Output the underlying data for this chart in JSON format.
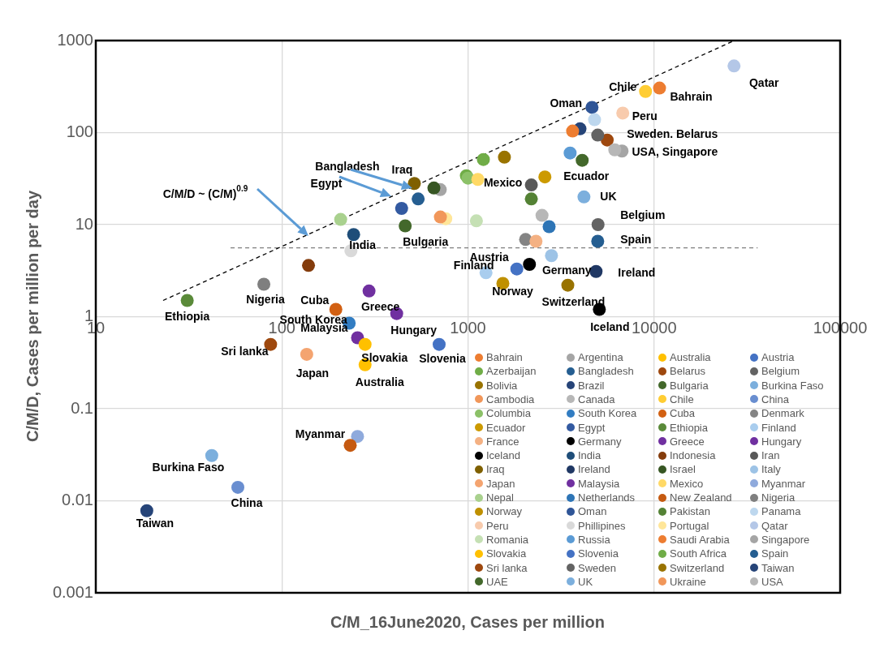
{
  "chart_data": {
    "type": "scatter",
    "xlabel": "C/M_16June2020, Cases per million",
    "ylabel": "C/M/D, Cases per million per day",
    "log": "xy",
    "grid": true,
    "legend": "bottom right",
    "marker": "circle",
    "xlim": [
      10,
      100000
    ],
    "xticks": [
      10,
      100,
      1000,
      10000,
      100000
    ],
    "ylim": [
      0.001,
      1000
    ],
    "yticks": [
      0.001,
      0.01,
      0.1,
      1,
      10,
      100,
      1000
    ],
    "series": [
      {
        "name": "Bahrain",
        "color": "#ed7d31",
        "x": [
          10700
        ],
        "values": [
          305
        ]
      },
      {
        "name": "Argentina",
        "color": "#a5a5a5",
        "x": [
          710
        ],
        "values": [
          24
        ]
      },
      {
        "name": "Australia",
        "color": "#ffc000",
        "x": [
          280
        ],
        "values": [
          0.3
        ]
      },
      {
        "name": "Austria",
        "color": "#4472c4",
        "x": [
          1830
        ],
        "values": [
          3.3
        ]
      },
      {
        "name": "Azerbaijan",
        "color": "#70ad47",
        "x": [
          980
        ],
        "values": [
          34
        ]
      },
      {
        "name": "Bangladesh",
        "color": "#255e91",
        "x": [
          540
        ],
        "values": [
          19
        ]
      },
      {
        "name": "Belarus",
        "color": "#9e480e",
        "x": [
          5600
        ],
        "values": [
          83
        ]
      },
      {
        "name": "Belgium",
        "color": "#636363",
        "x": [
          5000
        ],
        "values": [
          10
        ]
      },
      {
        "name": "Bolivia",
        "color": "#997300",
        "x": [
          1570
        ],
        "values": [
          54
        ]
      },
      {
        "name": "Brazil",
        "color": "#264478",
        "x": [
          4000
        ],
        "values": [
          110
        ]
      },
      {
        "name": "Bulgaria",
        "color": "#43682b",
        "x": [
          460
        ],
        "values": [
          9.7
        ]
      },
      {
        "name": "Burkina Faso",
        "color": "#7cafdd",
        "x": [
          42
        ],
        "values": [
          0.031
        ]
      },
      {
        "name": "Cambodia",
        "color": "#f1975a",
        "x": [
          null
        ],
        "values": [
          null
        ]
      },
      {
        "name": "Canada",
        "color": "#b7b7b7",
        "x": [
          2500
        ],
        "values": [
          12.6
        ]
      },
      {
        "name": "Chile",
        "color": "#ffcd33",
        "x": [
          9000
        ],
        "values": [
          280
        ]
      },
      {
        "name": "China",
        "color": "#698ed0",
        "x": [
          58
        ],
        "values": [
          0.014
        ]
      },
      {
        "name": "Columbia",
        "color": "#8cc168",
        "x": [
          1000
        ],
        "values": [
          32
        ]
      },
      {
        "name": "South Korea",
        "color": "#327dc2",
        "x": [
          230
        ],
        "values": [
          0.85
        ]
      },
      {
        "name": "Cuba",
        "color": "#d26012",
        "x": [
          195
        ],
        "values": [
          1.2
        ]
      },
      {
        "name": "Denmark",
        "color": "#848484",
        "x": [
          2040
        ],
        "values": [
          6.9
        ]
      },
      {
        "name": "Ecuador",
        "color": "#cc9a00",
        "x": [
          2590
        ],
        "values": [
          33
        ]
      },
      {
        "name": "Egypt",
        "color": "#335aa1",
        "x": [
          440
        ],
        "values": [
          15
        ]
      },
      {
        "name": "Ethiopia",
        "color": "#5a8a39",
        "x": [
          31
        ],
        "values": [
          1.5
        ]
      },
      {
        "name": "Finland",
        "color": "#a9cdee",
        "x": [
          1250
        ],
        "values": [
          3
        ]
      },
      {
        "name": "France",
        "color": "#f4b183",
        "x": [
          2320
        ],
        "values": [
          6.6
        ]
      },
      {
        "name": "Germany",
        "color": "#000000",
        "x": [
          2140
        ],
        "values": [
          3.7
        ]
      },
      {
        "name": "Greece",
        "color": "#7030a0",
        "x": [
          294
        ],
        "values": [
          1.9
        ]
      },
      {
        "name": "Hungary",
        "color": "#7030a0",
        "x": [
          414
        ],
        "values": [
          1.08
        ]
      },
      {
        "name": "Iceland",
        "color": "#000000",
        "x": [
          5080
        ],
        "values": [
          1.2
        ]
      },
      {
        "name": "India",
        "color": "#1f4e79",
        "x": [
          243
        ],
        "values": [
          7.8
        ]
      },
      {
        "name": "Indonesia",
        "color": "#843c0c",
        "x": [
          139
        ],
        "values": [
          3.6
        ]
      },
      {
        "name": "Iran",
        "color": "#595959",
        "x": [
          2190
        ],
        "values": [
          27
        ]
      },
      {
        "name": "Iraq",
        "color": "#7f6000",
        "x": [
          515
        ],
        "values": [
          28
        ]
      },
      {
        "name": "Ireland",
        "color": "#203864",
        "x": [
          4880
        ],
        "values": [
          3.1
        ]
      },
      {
        "name": "Israel",
        "color": "#375623",
        "x": [
          656
        ],
        "values": [
          25
        ]
      },
      {
        "name": "Italy",
        "color": "#9dc3e6",
        "x": [
          2810
        ],
        "values": [
          4.6
        ]
      },
      {
        "name": "Japan",
        "color": "#f4a470",
        "x": [
          136
        ],
        "values": [
          0.39
        ]
      },
      {
        "name": "Malaysia",
        "color": "#7030a0",
        "x": [
          255
        ],
        "values": [
          0.59
        ]
      },
      {
        "name": "Mexico",
        "color": "#ffd966",
        "x": [
          1130
        ],
        "values": [
          31
        ]
      },
      {
        "name": "Myanmar",
        "color": "#8faadc",
        "x": [
          255
        ],
        "values": [
          0.05
        ]
      },
      {
        "name": "Nepal",
        "color": "#a9d18e",
        "x": [
          207
        ],
        "values": [
          11.4
        ]
      },
      {
        "name": "Netherlands",
        "color": "#2e75b6",
        "x": [
          2730
        ],
        "values": [
          9.5
        ]
      },
      {
        "name": "New Zealand",
        "color": "#c55a11",
        "x": [
          233
        ],
        "values": [
          0.04
        ]
      },
      {
        "name": "Nigeria",
        "color": "#7f7f7f",
        "x": [
          80
        ],
        "values": [
          2.25
        ]
      },
      {
        "name": "Norway",
        "color": "#bf9000",
        "x": [
          1540
        ],
        "values": [
          2.3
        ]
      },
      {
        "name": "Oman",
        "color": "#2f5597",
        "x": [
          4640
        ],
        "values": [
          188
        ]
      },
      {
        "name": "Pakistan",
        "color": "#548235",
        "x": [
          2190
        ],
        "values": [
          19
        ]
      },
      {
        "name": "Panama",
        "color": "#bdd7ee",
        "x": [
          4790
        ],
        "values": [
          138
        ]
      },
      {
        "name": "Peru",
        "color": "#f8cbad",
        "x": [
          6790
        ],
        "values": [
          163
        ]
      },
      {
        "name": "Phillipines",
        "color": "#d9d9d9",
        "x": [
          235
        ],
        "values": [
          5.2
        ]
      },
      {
        "name": "Portugal",
        "color": "#ffe699",
        "x": [
          760
        ],
        "values": [
          11.6
        ]
      },
      {
        "name": "Qatar",
        "color": "#b4c7e7",
        "x": [
          26900
        ],
        "values": [
          530
        ]
      },
      {
        "name": "Romania",
        "color": "#c5e0b4",
        "x": [
          1110
        ],
        "values": [
          11
        ]
      },
      {
        "name": "Russia",
        "color": "#5b9bd5",
        "x": [
          3540
        ],
        "values": [
          60
        ]
      },
      {
        "name": "Saudi Arabia",
        "color": "#ed7d31",
        "x": [
          3650
        ],
        "values": [
          104
        ]
      },
      {
        "name": "Singapore",
        "color": "#a5a5a5",
        "x": [
          6730
        ],
        "values": [
          63
        ]
      },
      {
        "name": "Slovakia",
        "color": "#ffc000",
        "x": [
          280
        ],
        "values": [
          0.5
        ]
      },
      {
        "name": "Slovenia",
        "color": "#4472c4",
        "x": [
          700
        ],
        "values": [
          0.5
        ]
      },
      {
        "name": "South Africa",
        "color": "#70ad47",
        "x": [
          1210
        ],
        "values": [
          51
        ]
      },
      {
        "name": "Spain",
        "color": "#255e91",
        "x": [
          4980
        ],
        "values": [
          6.6
        ]
      },
      {
        "name": "Sri lanka",
        "color": "#9e480e",
        "x": [
          87
        ],
        "values": [
          0.5
        ]
      },
      {
        "name": "Sweden",
        "color": "#636363",
        "x": [
          4980
        ],
        "values": [
          94
        ]
      },
      {
        "name": "Switzerland",
        "color": "#997300",
        "x": [
          3440
        ],
        "values": [
          2.2
        ]
      },
      {
        "name": "Taiwan",
        "color": "#264478",
        "x": [
          18.8
        ],
        "values": [
          0.0078
        ]
      },
      {
        "name": "UAE",
        "color": "#43682b",
        "x": [
          4110
        ],
        "values": [
          50
        ]
      },
      {
        "name": "UK",
        "color": "#7cafdd",
        "x": [
          4200
        ],
        "values": [
          20
        ]
      },
      {
        "name": "Ukraine",
        "color": "#f1975a",
        "x": [
          711
        ],
        "values": [
          12.1
        ]
      },
      {
        "name": "USA",
        "color": "#b7b7b7",
        "x": [
          6150
        ],
        "values": [
          65
        ]
      },
      {
        "type": "line",
        "color": "#000000",
        "line_style": "dashed",
        "marker": "none",
        "x": [
          23,
          27000
        ],
        "values": [
          1.5,
          1000
        ]
      },
      {
        "type": "line",
        "color": "#7f7f7f",
        "line_style": "dashed",
        "marker": "none",
        "x": [
          53,
          36000
        ],
        "values": [
          5.6,
          5.6
        ]
      }
    ],
    "annotations": [
      {
        "text": "Qatar",
        "x": 26900,
        "y": 530
      },
      {
        "text": "Chile",
        "x": 9000,
        "y": 280
      },
      {
        "text": "Bahrain",
        "x": 10700,
        "y": 305
      },
      {
        "text": "Oman",
        "x": 4640,
        "y": 188
      },
      {
        "text": "Peru",
        "x": 6790,
        "y": 163
      },
      {
        "text": "Sweden. Belarus",
        "x": 4980,
        "y": 94
      },
      {
        "text": "USA, Singapore",
        "x": 6150,
        "y": 65
      },
      {
        "text": "Iraq",
        "x": 515,
        "y": 28
      },
      "Bangladesh",
      "Egypt",
      {
        "text": "Mexico",
        "x": 1130,
        "y": 31
      },
      {
        "text": "Ecuador",
        "x": 2590,
        "y": 33
      },
      {
        "text": "UK",
        "x": 4200,
        "y": 20
      },
      {
        "text": "Belgium",
        "x": 5000,
        "y": 10
      },
      {
        "text": "Spain",
        "x": 4980,
        "y": 6.6
      },
      {
        "text": "Bulgaria",
        "x": 460,
        "y": 9.7
      },
      {
        "text": "India",
        "x": 243,
        "y": 7.8
      },
      {
        "text": "Austria",
        "x": 1830,
        "y": 3.3
      },
      {
        "text": "Finland",
        "x": 1250,
        "y": 3
      },
      {
        "text": "Germany",
        "x": 2140,
        "y": 3.7
      },
      {
        "text": "Ireland",
        "x": 4880,
        "y": 3.1
      },
      {
        "text": "Norway",
        "x": 1540,
        "y": 2.3
      },
      {
        "text": "Switzerland",
        "x": 3440,
        "y": 2.2
      },
      {
        "text": "Iceland",
        "x": 5080,
        "y": 1.2
      },
      {
        "text": "Ethiopia",
        "x": 31,
        "y": 1.5
      },
      {
        "text": "Nigeria",
        "x": 80,
        "y": 2.25
      },
      {
        "text": "Cuba",
        "x": 195,
        "y": 1.2
      },
      {
        "text": "Greece",
        "x": 294,
        "y": 1.9
      },
      {
        "text": "South Korea",
        "x": 230,
        "y": 0.85
      },
      {
        "text": "Malaysia",
        "x": 255,
        "y": 0.59
      },
      {
        "text": "Hungary",
        "x": 414,
        "y": 1.08
      },
      {
        "text": "Sri lanka",
        "x": 87,
        "y": 0.5
      },
      {
        "text": "Slovakia",
        "x": 280,
        "y": 0.5
      },
      {
        "text": "Slovenia",
        "x": 700,
        "y": 0.5
      },
      {
        "text": "Japan",
        "x": 136,
        "y": 0.39
      },
      {
        "text": "Australia",
        "x": 280,
        "y": 0.3
      },
      {
        "text": "Myanmar",
        "x": 255,
        "y": 0.05
      },
      {
        "text": "Burkina Faso",
        "x": 42,
        "y": 0.031
      },
      {
        "text": "China",
        "x": 58,
        "y": 0.014
      },
      {
        "text": "Taiwan",
        "x": 18.8,
        "y": 0.0078
      },
      "C/M/D ~ (C/M)$^{0.9}$"
    ]
  }
}
